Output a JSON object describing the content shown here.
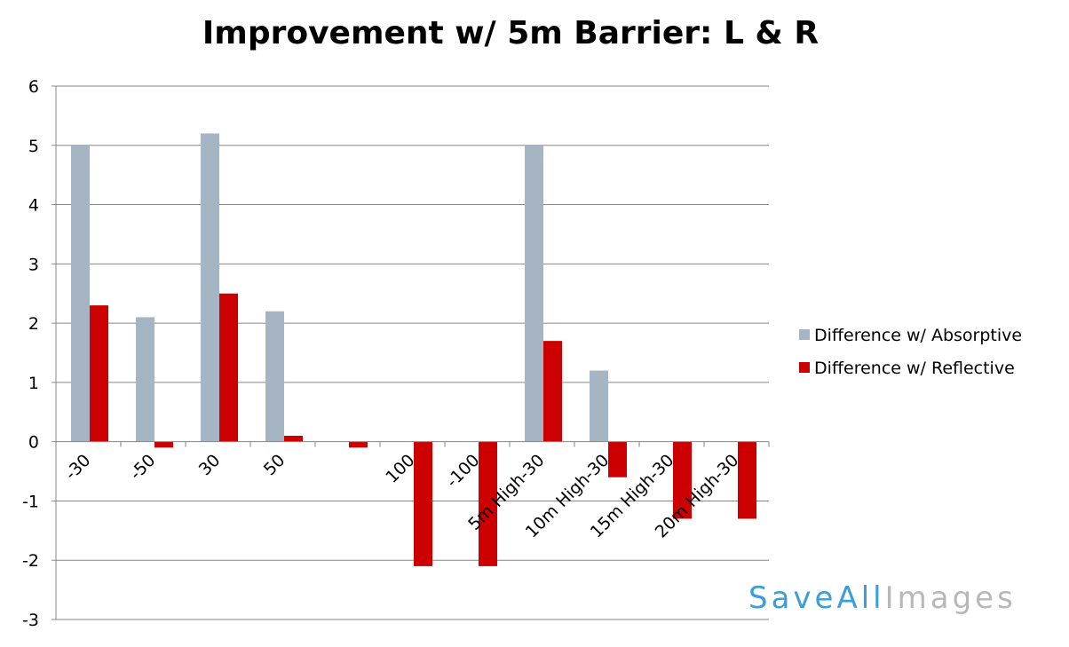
{
  "chart_data": {
    "type": "bar",
    "title": "Improvement w/ 5m Barrier: L & R",
    "categories": [
      "-30",
      "-50",
      "30",
      "50",
      "",
      "100",
      "-100",
      "5m High-30",
      "10m High-30",
      "15m High-30",
      "20m High-30"
    ],
    "series": [
      {
        "name": "Difference w/ Absorptive",
        "color": "#a6b5c4",
        "values": [
          5.0,
          2.1,
          5.2,
          2.2,
          0,
          0,
          0,
          5.0,
          1.2,
          0,
          0
        ]
      },
      {
        "name": "Difference w/ Reflective",
        "color": "#cc0000",
        "values": [
          2.3,
          -0.1,
          2.5,
          0.1,
          -0.1,
          -2.1,
          -2.1,
          1.7,
          -0.6,
          -1.3,
          -1.3
        ]
      }
    ],
    "yticks": [
      "6",
      "5",
      "4",
      "3",
      "2",
      "1",
      "0",
      "-1",
      "-2",
      "-3"
    ],
    "ylim": [
      -3,
      6
    ],
    "grid": true,
    "legend_position": "right"
  },
  "watermark": {
    "part1": "SaveAll",
    "part2": "Images"
  }
}
